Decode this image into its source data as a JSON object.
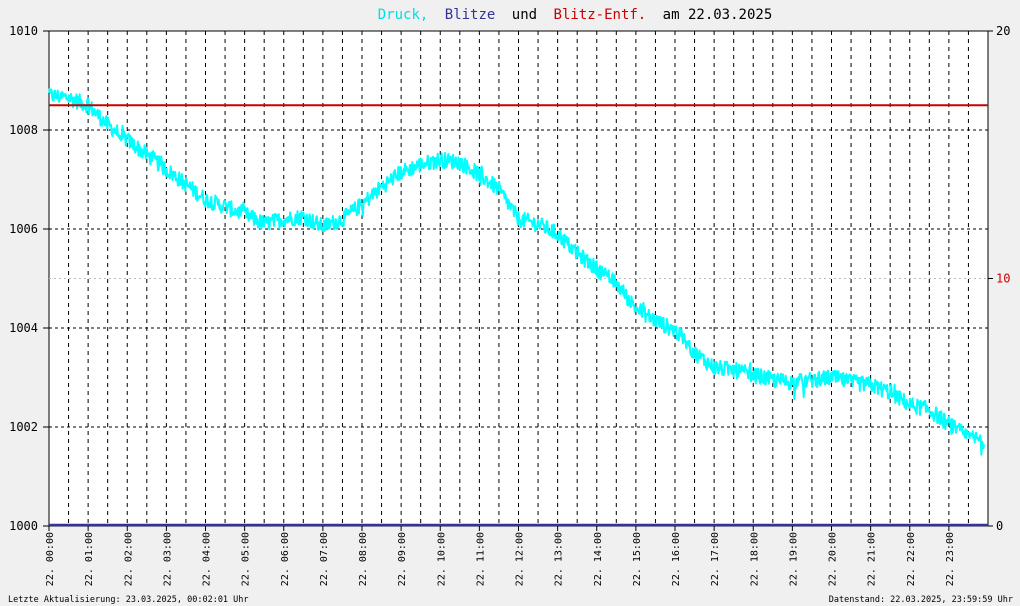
{
  "colors": {
    "background": "#f0f0f0",
    "plot_background": "#ffffff",
    "pressure": "#00ffff",
    "lightning": "#333399",
    "lightning_distance": "#cc0000",
    "grid": "#000000",
    "text": "#000000"
  },
  "title": {
    "part1": "Druck,",
    "part2": "Blitze",
    "part3": "und",
    "part4": "Blitz-Entf.",
    "part5": "am 22.03.2025"
  },
  "footer": {
    "left": "Letzte Aktualisierung: 23.03.2025, 00:02:01 Uhr",
    "right": "Datenstand: 22.03.2025, 23:59:59 Uhr"
  },
  "chart_data": {
    "type": "line",
    "x_unit": "hours",
    "xlim": [
      0,
      24
    ],
    "x_tick_labels": [
      "22. 00:00",
      "22. 01:00",
      "22. 02:00",
      "22. 03:00",
      "22. 04:00",
      "22. 05:00",
      "22. 06:00",
      "22. 07:00",
      "22. 08:00",
      "22. 09:00",
      "22. 10:00",
      "22. 11:00",
      "22. 12:00",
      "22. 13:00",
      "22. 14:00",
      "22. 15:00",
      "22. 16:00",
      "22. 17:00",
      "22. 18:00",
      "22. 19:00",
      "22. 20:00",
      "22. 21:00",
      "22. 22:00",
      "22. 23:00"
    ],
    "y_left": {
      "lim": [
        1000,
        1010
      ],
      "ticks": [
        1000,
        1002,
        1004,
        1006,
        1008,
        1010
      ]
    },
    "y_right": {
      "lim": [
        0,
        20
      ],
      "ticks": [
        0,
        10,
        20
      ]
    },
    "series": [
      {
        "name": "Druck",
        "axis": "left",
        "x": [
          0,
          0.5,
          1,
          1.5,
          2,
          2.5,
          3,
          3.5,
          4,
          4.5,
          5,
          5.5,
          6,
          6.5,
          7,
          7.5,
          8,
          8.5,
          9,
          9.5,
          10,
          10.5,
          11,
          11.5,
          12,
          12.5,
          13,
          13.5,
          14,
          14.5,
          15,
          15.5,
          16,
          16.5,
          17,
          17.5,
          18,
          18.5,
          19,
          19.5,
          20,
          20.5,
          21,
          21.5,
          22,
          22.5,
          23,
          23.5,
          24
        ],
        "values": [
          1008.7,
          1008.65,
          1008.5,
          1008.1,
          1007.8,
          1007.5,
          1007.2,
          1006.9,
          1006.6,
          1006.45,
          1006.3,
          1006.1,
          1006.2,
          1006.25,
          1006.05,
          1006.2,
          1006.5,
          1006.85,
          1007.15,
          1007.3,
          1007.4,
          1007.35,
          1007.1,
          1006.8,
          1006.2,
          1006.1,
          1005.9,
          1005.5,
          1005.2,
          1004.9,
          1004.4,
          1004.15,
          1003.95,
          1003.5,
          1003.2,
          1003.15,
          1003.05,
          1002.95,
          1002.9,
          1002.95,
          1003.0,
          1002.9,
          1002.85,
          1002.7,
          1002.45,
          1002.35,
          1002.05,
          1001.8,
          1001.7
        ]
      },
      {
        "name": "Blitze",
        "axis": "right",
        "x": [
          0,
          24
        ],
        "values": [
          0,
          0
        ]
      },
      {
        "name": "Blitz-Entf.",
        "axis": "right",
        "x": [
          0,
          24
        ],
        "values": [
          17,
          17
        ]
      }
    ]
  }
}
